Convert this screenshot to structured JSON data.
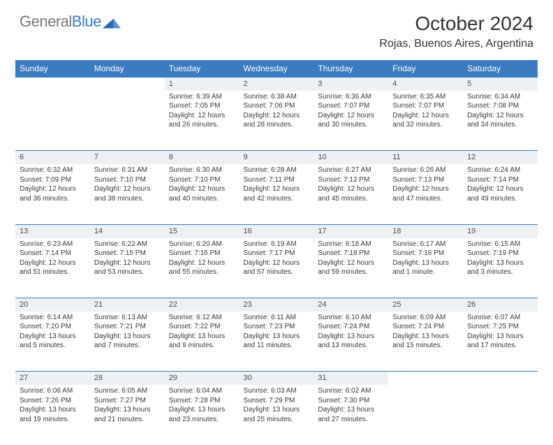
{
  "brand": {
    "name_gray": "General",
    "name_blue": "Blue"
  },
  "title": "October 2024",
  "location": "Rojas, Buenos Aires, Argentina",
  "colors": {
    "header_bg": "#3b7bbf",
    "header_text": "#ffffff",
    "daynum_bg": "#eef1f3",
    "row_divider": "#3b7bbf",
    "body_text": "#3a3a3a",
    "logo_gray": "#7a7a7a",
    "logo_blue": "#3b7bbf"
  },
  "typography": {
    "title_fontsize": 28,
    "location_fontsize": 16,
    "weekday_fontsize": 12,
    "daynum_fontsize": 11,
    "cell_fontsize": 10
  },
  "weekdays": [
    "Sunday",
    "Monday",
    "Tuesday",
    "Wednesday",
    "Thursday",
    "Friday",
    "Saturday"
  ],
  "weeks": [
    {
      "days": [
        null,
        null,
        {
          "n": "1",
          "sunrise": "6:39 AM",
          "sunset": "7:05 PM",
          "daylight": "12 hours and 26 minutes."
        },
        {
          "n": "2",
          "sunrise": "6:38 AM",
          "sunset": "7:06 PM",
          "daylight": "12 hours and 28 minutes."
        },
        {
          "n": "3",
          "sunrise": "6:36 AM",
          "sunset": "7:07 PM",
          "daylight": "12 hours and 30 minutes."
        },
        {
          "n": "4",
          "sunrise": "6:35 AM",
          "sunset": "7:07 PM",
          "daylight": "12 hours and 32 minutes."
        },
        {
          "n": "5",
          "sunrise": "6:34 AM",
          "sunset": "7:08 PM",
          "daylight": "12 hours and 34 minutes."
        }
      ]
    },
    {
      "days": [
        {
          "n": "6",
          "sunrise": "6:32 AM",
          "sunset": "7:09 PM",
          "daylight": "12 hours and 36 minutes."
        },
        {
          "n": "7",
          "sunrise": "6:31 AM",
          "sunset": "7:10 PM",
          "daylight": "12 hours and 38 minutes."
        },
        {
          "n": "8",
          "sunrise": "6:30 AM",
          "sunset": "7:10 PM",
          "daylight": "12 hours and 40 minutes."
        },
        {
          "n": "9",
          "sunrise": "6:28 AM",
          "sunset": "7:11 PM",
          "daylight": "12 hours and 42 minutes."
        },
        {
          "n": "10",
          "sunrise": "6:27 AM",
          "sunset": "7:12 PM",
          "daylight": "12 hours and 45 minutes."
        },
        {
          "n": "11",
          "sunrise": "6:26 AM",
          "sunset": "7:13 PM",
          "daylight": "12 hours and 47 minutes."
        },
        {
          "n": "12",
          "sunrise": "6:24 AM",
          "sunset": "7:14 PM",
          "daylight": "12 hours and 49 minutes."
        }
      ]
    },
    {
      "days": [
        {
          "n": "13",
          "sunrise": "6:23 AM",
          "sunset": "7:14 PM",
          "daylight": "12 hours and 51 minutes."
        },
        {
          "n": "14",
          "sunrise": "6:22 AM",
          "sunset": "7:15 PM",
          "daylight": "12 hours and 53 minutes."
        },
        {
          "n": "15",
          "sunrise": "6:20 AM",
          "sunset": "7:16 PM",
          "daylight": "12 hours and 55 minutes."
        },
        {
          "n": "16",
          "sunrise": "6:19 AM",
          "sunset": "7:17 PM",
          "daylight": "12 hours and 57 minutes."
        },
        {
          "n": "17",
          "sunrise": "6:18 AM",
          "sunset": "7:18 PM",
          "daylight": "12 hours and 59 minutes."
        },
        {
          "n": "18",
          "sunrise": "6:17 AM",
          "sunset": "7:18 PM",
          "daylight": "13 hours and 1 minute."
        },
        {
          "n": "19",
          "sunrise": "6:15 AM",
          "sunset": "7:19 PM",
          "daylight": "13 hours and 3 minutes."
        }
      ]
    },
    {
      "days": [
        {
          "n": "20",
          "sunrise": "6:14 AM",
          "sunset": "7:20 PM",
          "daylight": "13 hours and 5 minutes."
        },
        {
          "n": "21",
          "sunrise": "6:13 AM",
          "sunset": "7:21 PM",
          "daylight": "13 hours and 7 minutes."
        },
        {
          "n": "22",
          "sunrise": "6:12 AM",
          "sunset": "7:22 PM",
          "daylight": "13 hours and 9 minutes."
        },
        {
          "n": "23",
          "sunrise": "6:11 AM",
          "sunset": "7:23 PM",
          "daylight": "13 hours and 11 minutes."
        },
        {
          "n": "24",
          "sunrise": "6:10 AM",
          "sunset": "7:24 PM",
          "daylight": "13 hours and 13 minutes."
        },
        {
          "n": "25",
          "sunrise": "6:09 AM",
          "sunset": "7:24 PM",
          "daylight": "13 hours and 15 minutes."
        },
        {
          "n": "26",
          "sunrise": "6:07 AM",
          "sunset": "7:25 PM",
          "daylight": "13 hours and 17 minutes."
        }
      ]
    },
    {
      "days": [
        {
          "n": "27",
          "sunrise": "6:06 AM",
          "sunset": "7:26 PM",
          "daylight": "13 hours and 19 minutes."
        },
        {
          "n": "28",
          "sunrise": "6:05 AM",
          "sunset": "7:27 PM",
          "daylight": "13 hours and 21 minutes."
        },
        {
          "n": "29",
          "sunrise": "6:04 AM",
          "sunset": "7:28 PM",
          "daylight": "13 hours and 23 minutes."
        },
        {
          "n": "30",
          "sunrise": "6:03 AM",
          "sunset": "7:29 PM",
          "daylight": "13 hours and 25 minutes."
        },
        {
          "n": "31",
          "sunrise": "6:02 AM",
          "sunset": "7:30 PM",
          "daylight": "13 hours and 27 minutes."
        },
        null,
        null
      ]
    }
  ],
  "labels": {
    "sunrise": "Sunrise:",
    "sunset": "Sunset:",
    "daylight": "Daylight:"
  }
}
